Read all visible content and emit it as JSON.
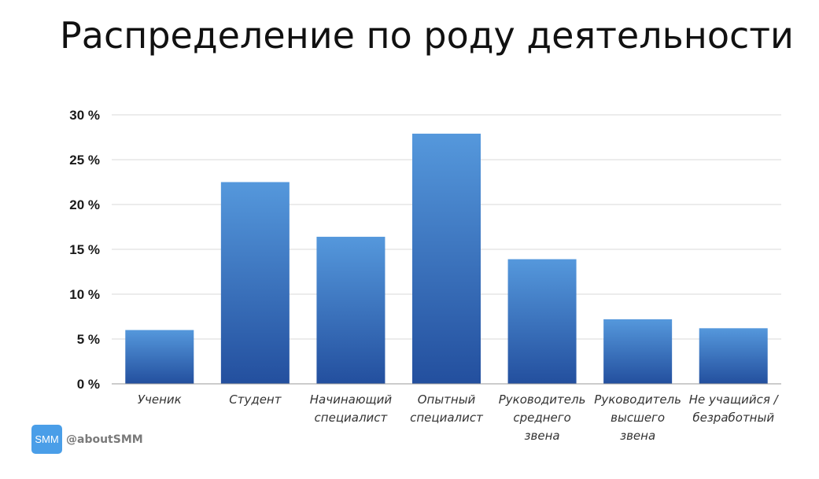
{
  "brand": {
    "badge": "SMM",
    "handle": "@aboutSMM"
  },
  "colors": {
    "bar_top": "#5598dc",
    "bar_bottom": "#234f9e",
    "grid": "#d9d9d9",
    "axis": "#999999",
    "badge": "#4a9ee8"
  },
  "chart_data": {
    "type": "bar",
    "title": "Распределение по роду деятельности",
    "xlabel": "",
    "ylabel": "",
    "categories": [
      [
        "Ученик"
      ],
      [
        "Студент"
      ],
      [
        "Начинающий",
        "специалист"
      ],
      [
        "Опытный",
        "специалист"
      ],
      [
        "Руководитель",
        "среднего",
        "звена"
      ],
      [
        "Руководитель",
        "высшего",
        "звена"
      ],
      [
        "Не учащийся /",
        "безработный"
      ]
    ],
    "values": [
      6,
      22.5,
      16.4,
      27.9,
      13.9,
      7.2,
      6.2
    ],
    "ylim": [
      0,
      30
    ],
    "yticks": [
      0,
      5,
      10,
      15,
      20,
      25,
      30
    ],
    "ytick_labels": [
      "0 %",
      "5 %",
      "10 %",
      "15 %",
      "20 %",
      "25 %",
      "30 %"
    ],
    "grid": true,
    "legend": "none"
  }
}
